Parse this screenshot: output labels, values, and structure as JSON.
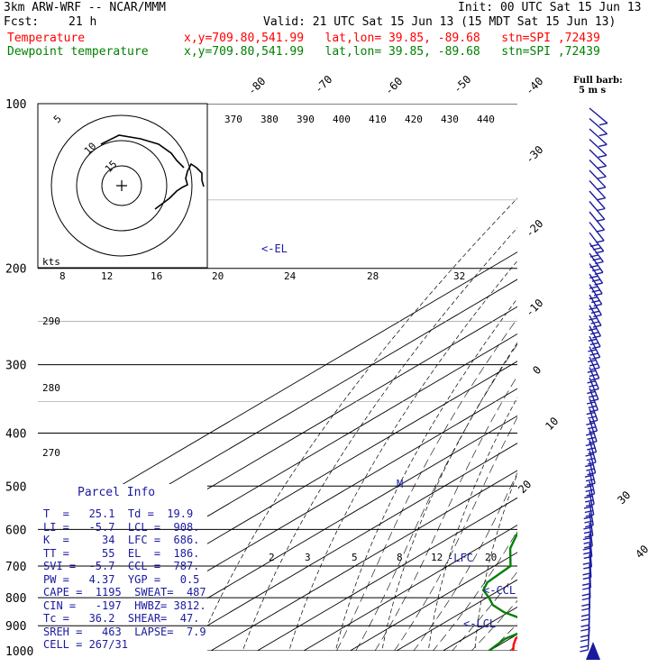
{
  "header": {
    "model": "3km ARW-WRF -- NCAR/MMM",
    "init": "Init: 00 UTC Sat 15 Jun 13",
    "fcst_label": "Fcst:",
    "fcst_value": "21 h",
    "valid": "Valid: 21 UTC Sat 15 Jun 13 (15 MDT Sat 15 Jun 13)",
    "temperature_label": "Temperature",
    "dewpoint_label": "Dewpoint temperature",
    "location": "x,y=709.80,541.99   lat,lon= 39.85, -89.68   stn=SPI ,72439"
  },
  "colors": {
    "temperature": "#ff0000",
    "dewpoint": "#008000",
    "annotation": "#1a1aa0",
    "wind_barbs": "#1a1aa0",
    "grid": "#000000"
  },
  "chart_data": {
    "type": "line",
    "title": "Skew-T log-P sounding",
    "pressure_levels": [
      100,
      200,
      300,
      400,
      500,
      600,
      700,
      800,
      900,
      1000
    ],
    "isotherm_labels": [
      -80,
      -70,
      -60,
      -50,
      -40,
      -30,
      -20,
      -10,
      0,
      10,
      20,
      30,
      40
    ],
    "theta_labels": [
      370,
      380,
      390,
      400,
      410,
      420,
      430,
      440
    ],
    "theta_left_labels": [
      290,
      280,
      270
    ],
    "mixing_ratio_labels": [
      "2",
      "3",
      "5",
      "8",
      "12",
      "20"
    ],
    "hodograph_speed_labels": [
      "8",
      "12",
      "16",
      "20",
      "24",
      "28",
      "32"
    ],
    "hodograph_unit": "kts",
    "hodograph_rings": [
      "5",
      "10",
      "15"
    ],
    "wind_barb_legend": [
      "Full barb:",
      "5 m s"
    ],
    "annotations": [
      "<-EL",
      "-LFC",
      "<-CCL",
      "<-LCL",
      "M"
    ],
    "series": [
      {
        "name": "Temperature",
        "points": [
          {
            "p": 1000,
            "t": 25.1
          },
          {
            "p": 975,
            "t": 23.0
          },
          {
            "p": 950,
            "t": 21.2
          },
          {
            "p": 925,
            "t": 20.5
          },
          {
            "p": 900,
            "t": 20.5
          },
          {
            "p": 875,
            "t": 18.5
          },
          {
            "p": 850,
            "t": 16.5
          },
          {
            "p": 825,
            "t": 14.8
          },
          {
            "p": 800,
            "t": 13.2
          },
          {
            "p": 775,
            "t": 12.3
          },
          {
            "p": 750,
            "t": 10.2
          },
          {
            "p": 700,
            "t": 6.8
          },
          {
            "p": 650,
            "t": 2.0
          },
          {
            "p": 600,
            "t": -3.0
          },
          {
            "p": 550,
            "t": -7.0
          },
          {
            "p": 500,
            "t": -12.0
          },
          {
            "p": 450,
            "t": -17.5
          },
          {
            "p": 400,
            "t": -23.5
          },
          {
            "p": 350,
            "t": -31.0
          },
          {
            "p": 300,
            "t": -40.0
          },
          {
            "p": 250,
            "t": -50.0
          },
          {
            "p": 200,
            "t": -61.0
          },
          {
            "p": 186,
            "t": -65.0
          },
          {
            "p": 170,
            "t": -63.0
          },
          {
            "p": 150,
            "t": -61.0
          },
          {
            "p": 125,
            "t": -59.0
          },
          {
            "p": 100,
            "t": -58.0
          }
        ]
      },
      {
        "name": "Dewpoint temperature",
        "points": [
          {
            "p": 1000,
            "t": 19.9
          },
          {
            "p": 975,
            "t": 19.4
          },
          {
            "p": 950,
            "t": 19.0
          },
          {
            "p": 925,
            "t": 20.0
          },
          {
            "p": 900,
            "t": 19.5
          },
          {
            "p": 875,
            "t": 15.5
          },
          {
            "p": 850,
            "t": 9.0
          },
          {
            "p": 825,
            "t": 4.0
          },
          {
            "p": 800,
            "t": 0.5
          },
          {
            "p": 775,
            "t": -3.5
          },
          {
            "p": 750,
            "t": -5.5
          },
          {
            "p": 700,
            "t": -6.5
          },
          {
            "p": 650,
            "t": -13.0
          },
          {
            "p": 600,
            "t": -18.0
          },
          {
            "p": 550,
            "t": -16.0
          },
          {
            "p": 500,
            "t": -18.0
          },
          {
            "p": 450,
            "t": -24.0
          },
          {
            "p": 400,
            "t": -30.0
          },
          {
            "p": 350,
            "t": -38.0
          },
          {
            "p": 300,
            "t": -48.0
          },
          {
            "p": 250,
            "t": -60.0
          },
          {
            "p": 200,
            "t": -72.0
          },
          {
            "p": 175,
            "t": -78.0
          },
          {
            "p": 150,
            "t": -88.0
          },
          {
            "p": 125,
            "t": -88.0
          },
          {
            "p": 100,
            "t": -90.0
          }
        ]
      }
    ]
  },
  "parcel": {
    "title": "Parcel Info",
    "rows": [
      "T  =   25.1  Td =  19.9",
      "LI =   -5.7  LCL =  908.",
      "K  =     34  LFC =  686.",
      "TT =     55  EL  =  186.",
      "SVI =  -5.7  CCL =  787.",
      "PW =   4.37  YGP =   0.5",
      "CAPE =  1195  SWEAT=  487",
      "CIN =   -197  HWBZ= 3812.",
      "Tc =   36.2  SHEAR=  47.",
      "SREH =   463  LAPSE=  7.9",
      "CELL = 267/31"
    ]
  }
}
